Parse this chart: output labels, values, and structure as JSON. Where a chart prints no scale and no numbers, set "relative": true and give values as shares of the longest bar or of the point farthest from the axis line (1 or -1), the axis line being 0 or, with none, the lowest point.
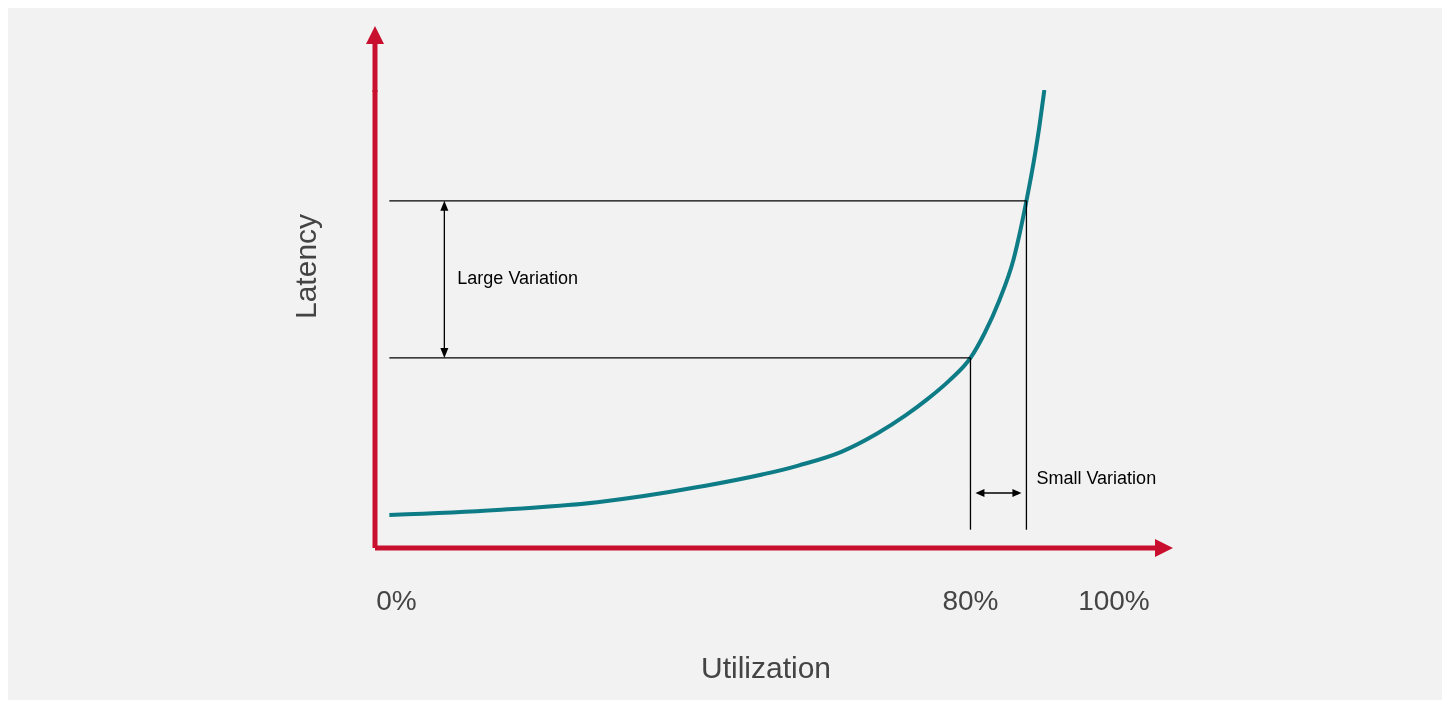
{
  "chart_data": {
    "type": "line",
    "relative": true,
    "xlabel": "Utilization",
    "ylabel": "Latency",
    "xlim": [
      -3,
      106
    ],
    "xticks": [
      {
        "value": 0,
        "label": "0%"
      },
      {
        "value": 80,
        "label": "80%"
      },
      {
        "value": 100,
        "label": "100%"
      }
    ],
    "marker": "none",
    "line_style": "solid",
    "series": [
      {
        "color": "#0e7c86",
        "x": [
          -1,
          14,
          28,
          42,
          56,
          62,
          67,
          71,
          74,
          77,
          80,
          82,
          84,
          86,
          87.8,
          89,
          89.6,
          90.3
        ],
        "values": [
          0.072,
          0.083,
          0.1,
          0.133,
          0.18,
          0.21,
          0.25,
          0.29,
          0.325,
          0.365,
          0.415,
          0.47,
          0.54,
          0.63,
          0.758,
          0.86,
          0.92,
          1.0
        ]
      }
    ],
    "ref_lines": [
      {
        "axis": "y",
        "value": 0.415,
        "color": "#000000"
      },
      {
        "axis": "y",
        "value": 0.758,
        "color": "#000000"
      },
      {
        "axis": "x",
        "value": 80,
        "color": "#000000"
      },
      {
        "axis": "x",
        "value": 87.8,
        "color": "#000000"
      }
    ],
    "annotations": [
      "Large Variation",
      "Small Variation"
    ]
  }
}
